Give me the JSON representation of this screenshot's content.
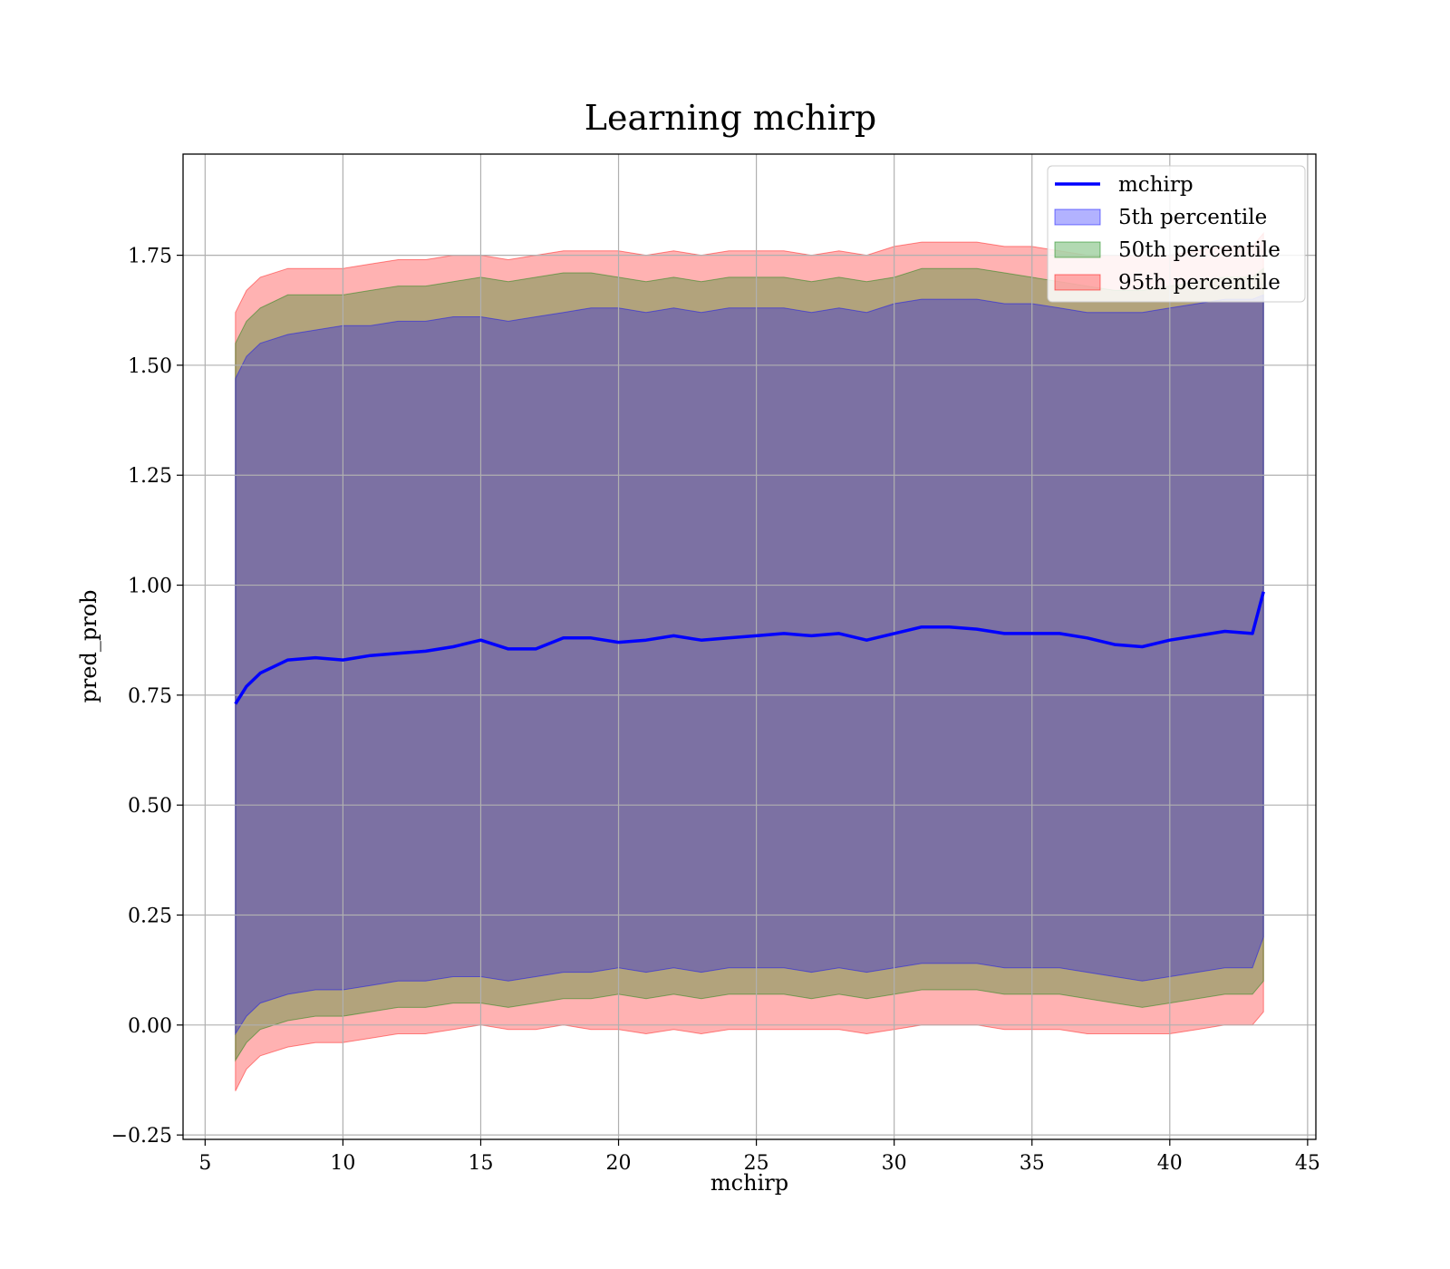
{
  "chart_data": {
    "type": "line",
    "title": "Learning mchirp",
    "xlabel": "mchirp",
    "ylabel": "pred_prob",
    "xlim": [
      4.2,
      45.3
    ],
    "ylim": [
      -0.26,
      1.98
    ],
    "x_ticks": [
      5,
      10,
      15,
      20,
      25,
      30,
      35,
      40,
      45
    ],
    "x_tick_labels": [
      "5",
      "10",
      "15",
      "20",
      "25",
      "30",
      "35",
      "40",
      "45"
    ],
    "y_ticks": [
      -0.25,
      0.0,
      0.25,
      0.5,
      0.75,
      1.0,
      1.25,
      1.5,
      1.75
    ],
    "y_tick_labels": [
      "−0.25",
      "0.00",
      "0.25",
      "0.50",
      "0.75",
      "1.00",
      "1.25",
      "1.50",
      "1.75"
    ],
    "grid": true,
    "legend_position": "top-right",
    "colors": {
      "line": "#0000ff",
      "band5": "#0000ff",
      "band50": "#008000",
      "band95": "#ff0000"
    },
    "x": [
      6.1,
      6.5,
      7,
      8,
      9,
      10,
      11,
      12,
      13,
      14,
      15,
      16,
      17,
      18,
      19,
      20,
      21,
      22,
      23,
      24,
      25,
      26,
      27,
      28,
      29,
      30,
      31,
      32,
      33,
      34,
      35,
      36,
      37,
      38,
      39,
      40,
      41,
      42,
      43,
      43.4
    ],
    "series": [
      {
        "name": "mchirp",
        "kind": "line",
        "values": [
          0.73,
          0.77,
          0.8,
          0.83,
          0.835,
          0.83,
          0.84,
          0.845,
          0.85,
          0.86,
          0.875,
          0.855,
          0.855,
          0.88,
          0.88,
          0.87,
          0.875,
          0.885,
          0.875,
          0.88,
          0.885,
          0.89,
          0.885,
          0.89,
          0.875,
          0.89,
          0.905,
          0.905,
          0.9,
          0.89,
          0.89,
          0.89,
          0.88,
          0.865,
          0.86,
          0.875,
          0.885,
          0.895,
          0.89,
          0.985
        ]
      },
      {
        "name": "5th percentile",
        "kind": "band",
        "lower": [
          -0.02,
          0.02,
          0.05,
          0.07,
          0.08,
          0.08,
          0.09,
          0.1,
          0.1,
          0.11,
          0.11,
          0.1,
          0.11,
          0.12,
          0.12,
          0.13,
          0.12,
          0.13,
          0.12,
          0.13,
          0.13,
          0.13,
          0.12,
          0.13,
          0.12,
          0.13,
          0.14,
          0.14,
          0.14,
          0.13,
          0.13,
          0.13,
          0.12,
          0.11,
          0.1,
          0.11,
          0.12,
          0.13,
          0.13,
          0.2
        ],
        "upper": [
          1.47,
          1.52,
          1.55,
          1.57,
          1.58,
          1.59,
          1.59,
          1.6,
          1.6,
          1.61,
          1.61,
          1.6,
          1.61,
          1.62,
          1.63,
          1.63,
          1.62,
          1.63,
          1.62,
          1.63,
          1.63,
          1.63,
          1.62,
          1.63,
          1.62,
          1.64,
          1.65,
          1.65,
          1.65,
          1.64,
          1.64,
          1.63,
          1.62,
          1.62,
          1.62,
          1.63,
          1.64,
          1.65,
          1.65,
          1.66
        ]
      },
      {
        "name": "50th percentile",
        "kind": "band",
        "lower": [
          -0.08,
          -0.04,
          -0.01,
          0.01,
          0.02,
          0.02,
          0.03,
          0.04,
          0.04,
          0.05,
          0.05,
          0.04,
          0.05,
          0.06,
          0.06,
          0.07,
          0.06,
          0.07,
          0.06,
          0.07,
          0.07,
          0.07,
          0.06,
          0.07,
          0.06,
          0.07,
          0.08,
          0.08,
          0.08,
          0.07,
          0.07,
          0.07,
          0.06,
          0.05,
          0.04,
          0.05,
          0.06,
          0.07,
          0.07,
          0.1
        ],
        "upper": [
          1.55,
          1.6,
          1.63,
          1.66,
          1.66,
          1.66,
          1.67,
          1.68,
          1.68,
          1.69,
          1.7,
          1.69,
          1.7,
          1.71,
          1.71,
          1.7,
          1.69,
          1.7,
          1.69,
          1.7,
          1.7,
          1.7,
          1.69,
          1.7,
          1.69,
          1.7,
          1.72,
          1.72,
          1.72,
          1.71,
          1.7,
          1.69,
          1.68,
          1.67,
          1.67,
          1.68,
          1.69,
          1.7,
          1.7,
          1.72
        ]
      },
      {
        "name": "95th percentile",
        "kind": "band",
        "lower": [
          -0.15,
          -0.1,
          -0.07,
          -0.05,
          -0.04,
          -0.04,
          -0.03,
          -0.02,
          -0.02,
          -0.01,
          0.0,
          -0.01,
          -0.01,
          0.0,
          -0.01,
          -0.01,
          -0.02,
          -0.01,
          -0.02,
          -0.01,
          -0.01,
          -0.01,
          -0.01,
          -0.01,
          -0.02,
          -0.01,
          0.0,
          0.0,
          0.0,
          -0.01,
          -0.01,
          -0.01,
          -0.02,
          -0.02,
          -0.02,
          -0.02,
          -0.01,
          0.0,
          0.0,
          0.03
        ],
        "upper": [
          1.62,
          1.67,
          1.7,
          1.72,
          1.72,
          1.72,
          1.73,
          1.74,
          1.74,
          1.75,
          1.75,
          1.74,
          1.75,
          1.76,
          1.76,
          1.76,
          1.75,
          1.76,
          1.75,
          1.76,
          1.76,
          1.76,
          1.75,
          1.76,
          1.75,
          1.77,
          1.78,
          1.78,
          1.78,
          1.77,
          1.77,
          1.76,
          1.75,
          1.75,
          1.75,
          1.75,
          1.76,
          1.77,
          1.77,
          1.8
        ]
      }
    ]
  }
}
